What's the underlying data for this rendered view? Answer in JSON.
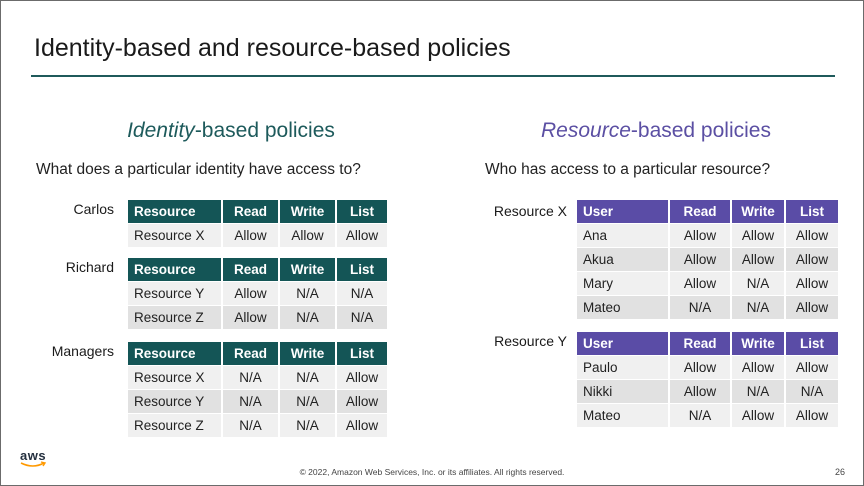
{
  "title": "Identity-based and resource-based policies",
  "identity": {
    "heading_em": "Identity",
    "heading_rest": "-based policies",
    "question": "What does a particular identity have access to?",
    "headers": [
      "Resource",
      "Read",
      "Write",
      "List"
    ],
    "groups": [
      {
        "label": "Carlos",
        "rows": [
          [
            "Resource X",
            "Allow",
            "Allow",
            "Allow"
          ]
        ]
      },
      {
        "label": "Richard",
        "rows": [
          [
            "Resource Y",
            "Allow",
            "N/A",
            "N/A"
          ],
          [
            "Resource Z",
            "Allow",
            "N/A",
            "N/A"
          ]
        ]
      },
      {
        "label": "Managers",
        "rows": [
          [
            "Resource X",
            "N/A",
            "N/A",
            "Allow"
          ],
          [
            "Resource Y",
            "N/A",
            "N/A",
            "Allow"
          ],
          [
            "Resource Z",
            "N/A",
            "N/A",
            "Allow"
          ]
        ]
      }
    ]
  },
  "resource": {
    "heading_em": "Resource",
    "heading_rest": "-based policies",
    "question": "Who has access to a particular resource?",
    "headers": [
      "User",
      "Read",
      "Write",
      "List"
    ],
    "groups": [
      {
        "label": "Resource X",
        "rows": [
          [
            "Ana",
            "Allow",
            "Allow",
            "Allow"
          ],
          [
            "Akua",
            "Allow",
            "Allow",
            "Allow"
          ],
          [
            "Mary",
            "Allow",
            "N/A",
            "Allow"
          ],
          [
            "Mateo",
            "N/A",
            "N/A",
            "Allow"
          ]
        ]
      },
      {
        "label": "Resource Y",
        "rows": [
          [
            "Paulo",
            "Allow",
            "Allow",
            "Allow"
          ],
          [
            "Nikki",
            "Allow",
            "N/A",
            "N/A"
          ],
          [
            "Mateo",
            "N/A",
            "Allow",
            "Allow"
          ]
        ]
      }
    ]
  },
  "footer": {
    "copyright": "© 2022, Amazon Web Services, Inc. or its affiliates. All rights reserved.",
    "page_number": "26",
    "logo_text": "aws"
  },
  "colors": {
    "teal": "#145556",
    "purple": "#5a4ca6",
    "rule": "#1f5a5b"
  }
}
